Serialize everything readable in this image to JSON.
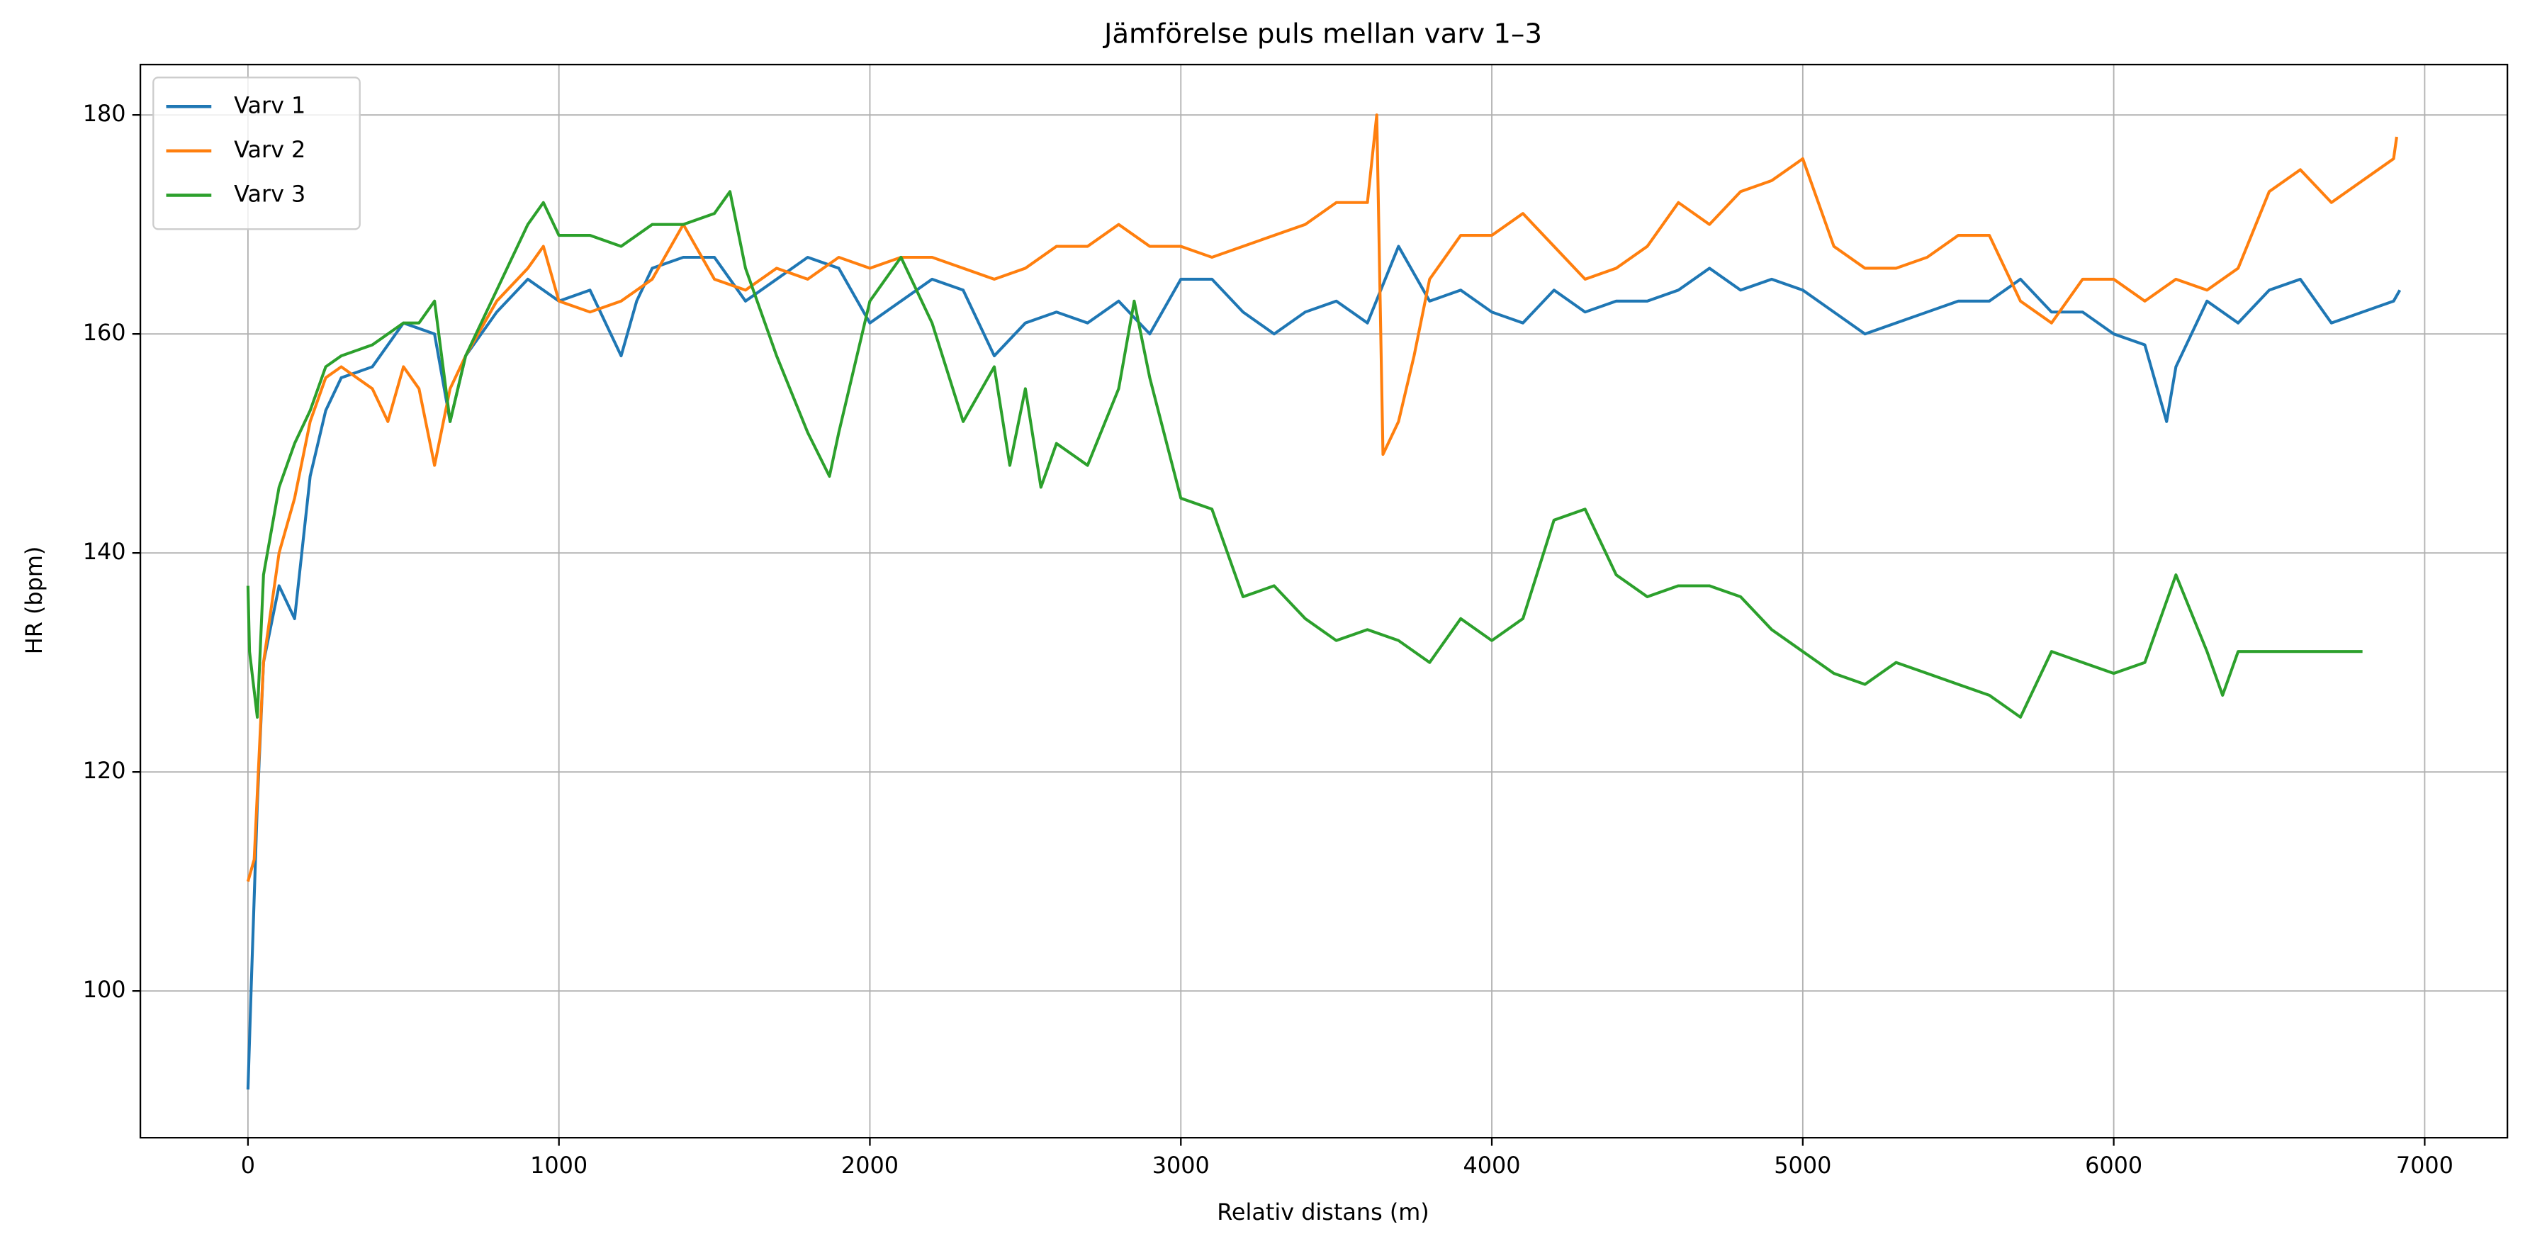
{
  "chart_data": {
    "type": "line",
    "title": "Jämförelse puls mellan varv 1–3",
    "x_label": "Relativ distans (m)",
    "y_label": "HR (bpm)",
    "xlim": [
      -346,
      7266
    ],
    "ylim": [
      86.6,
      184.6
    ],
    "xticks": [
      0,
      1000,
      2000,
      3000,
      4000,
      5000,
      6000,
      7000
    ],
    "yticks": [
      100,
      120,
      140,
      160,
      180
    ],
    "grid": true,
    "legend": "upper-left",
    "series": [
      {
        "name": "Varv 1",
        "color": "#1f77b4",
        "x": [
          0,
          10,
          30,
          50,
          100,
          150,
          200,
          250,
          300,
          400,
          500,
          600,
          650,
          700,
          800,
          900,
          1000,
          1100,
          1200,
          1250,
          1300,
          1400,
          1500,
          1600,
          1700,
          1800,
          1900,
          2000,
          2100,
          2200,
          2300,
          2400,
          2500,
          2600,
          2700,
          2800,
          2900,
          3000,
          3100,
          3200,
          3300,
          3400,
          3500,
          3600,
          3700,
          3800,
          3900,
          4000,
          4100,
          4200,
          4300,
          4400,
          4500,
          4600,
          4700,
          4800,
          4900,
          5000,
          5100,
          5200,
          5300,
          5400,
          5500,
          5600,
          5700,
          5800,
          5900,
          6000,
          6100,
          6170,
          6200,
          6300,
          6400,
          6500,
          6600,
          6700,
          6800,
          6900,
          6920
        ],
        "values": [
          91,
          100,
          117,
          130,
          137,
          134,
          147,
          153,
          156,
          157,
          161,
          160,
          152,
          158,
          162,
          165,
          163,
          164,
          158,
          163,
          166,
          167,
          167,
          163,
          165,
          167,
          166,
          161,
          163,
          165,
          164,
          158,
          161,
          162,
          161,
          163,
          160,
          165,
          165,
          162,
          160,
          162,
          163,
          161,
          168,
          163,
          164,
          162,
          161,
          164,
          162,
          163,
          163,
          164,
          166,
          164,
          165,
          164,
          162,
          160,
          161,
          162,
          163,
          163,
          165,
          162,
          162,
          160,
          159,
          152,
          157,
          163,
          161,
          164,
          165,
          161,
          162,
          163,
          164
        ]
      },
      {
        "name": "Varv 2",
        "color": "#ff7f0e",
        "x": [
          0,
          20,
          50,
          100,
          150,
          200,
          250,
          300,
          400,
          450,
          500,
          550,
          600,
          650,
          700,
          800,
          900,
          950,
          1000,
          1100,
          1200,
          1300,
          1400,
          1500,
          1600,
          1700,
          1800,
          1900,
          2000,
          2100,
          2200,
          2300,
          2400,
          2500,
          2600,
          2700,
          2800,
          2900,
          3000,
          3100,
          3200,
          3300,
          3400,
          3500,
          3600,
          3630,
          3650,
          3700,
          3750,
          3800,
          3900,
          4000,
          4100,
          4200,
          4300,
          4400,
          4500,
          4600,
          4700,
          4800,
          4900,
          5000,
          5100,
          5200,
          5300,
          5400,
          5500,
          5600,
          5700,
          5800,
          5900,
          6000,
          6100,
          6200,
          6300,
          6400,
          6500,
          6600,
          6700,
          6800,
          6900,
          6910
        ],
        "values": [
          110,
          112,
          130,
          140,
          145,
          152,
          156,
          157,
          155,
          152,
          157,
          155,
          148,
          155,
          158,
          163,
          166,
          168,
          163,
          162,
          163,
          165,
          170,
          165,
          164,
          166,
          165,
          167,
          166,
          167,
          167,
          166,
          165,
          166,
          168,
          168,
          170,
          168,
          168,
          167,
          168,
          169,
          170,
          172,
          172,
          180,
          149,
          152,
          158,
          165,
          169,
          169,
          171,
          168,
          165,
          166,
          168,
          172,
          170,
          173,
          174,
          176,
          168,
          166,
          166,
          167,
          169,
          169,
          163,
          161,
          165,
          165,
          163,
          165,
          164,
          166,
          173,
          175,
          172,
          174,
          176,
          178
        ]
      },
      {
        "name": "Varv 3",
        "color": "#2ca02c",
        "x": [
          0,
          5,
          30,
          50,
          100,
          150,
          200,
          250,
          300,
          400,
          500,
          550,
          600,
          650,
          700,
          800,
          900,
          950,
          1000,
          1100,
          1200,
          1300,
          1400,
          1500,
          1550,
          1600,
          1700,
          1800,
          1870,
          1900,
          2000,
          2100,
          2200,
          2300,
          2400,
          2450,
          2500,
          2550,
          2600,
          2700,
          2800,
          2850,
          2900,
          3000,
          3100,
          3200,
          3300,
          3400,
          3500,
          3600,
          3700,
          3800,
          3900,
          4000,
          4100,
          4200,
          4300,
          4400,
          4500,
          4600,
          4700,
          4800,
          4900,
          5000,
          5100,
          5200,
          5300,
          5400,
          5500,
          5600,
          5700,
          5800,
          5900,
          6000,
          6100,
          6200,
          6300,
          6350,
          6400,
          6500,
          6600,
          6700,
          6800
        ],
        "values": [
          137,
          131,
          125,
          138,
          146,
          150,
          153,
          157,
          158,
          159,
          161,
          161,
          163,
          152,
          158,
          164,
          170,
          172,
          169,
          169,
          168,
          170,
          170,
          171,
          173,
          166,
          158,
          151,
          147,
          151,
          163,
          167,
          161,
          152,
          157,
          148,
          155,
          146,
          150,
          148,
          155,
          163,
          156,
          145,
          144,
          136,
          137,
          134,
          132,
          133,
          132,
          130,
          134,
          132,
          134,
          143,
          144,
          138,
          136,
          137,
          137,
          136,
          133,
          131,
          129,
          128,
          130,
          129,
          128,
          127,
          125,
          131,
          130,
          129,
          130,
          138,
          131,
          127,
          131,
          131,
          131,
          131,
          131
        ]
      }
    ]
  }
}
